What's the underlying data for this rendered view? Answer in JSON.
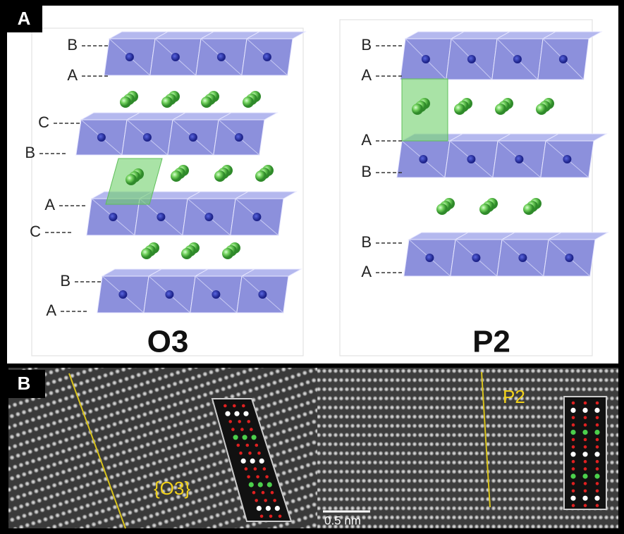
{
  "panel_a": {
    "label": "A",
    "o3": {
      "title": "O3",
      "layers": [
        "B",
        "A",
        "C",
        "B",
        "A",
        "C",
        "B",
        "A"
      ]
    },
    "p2": {
      "title": "P2",
      "layers": [
        "B",
        "A",
        "A",
        "B",
        "B",
        "A"
      ]
    }
  },
  "panel_b": {
    "label": "B",
    "o3_label": "{O3}",
    "p2_label": "P2",
    "scale_bar": "0.5 nm"
  }
}
